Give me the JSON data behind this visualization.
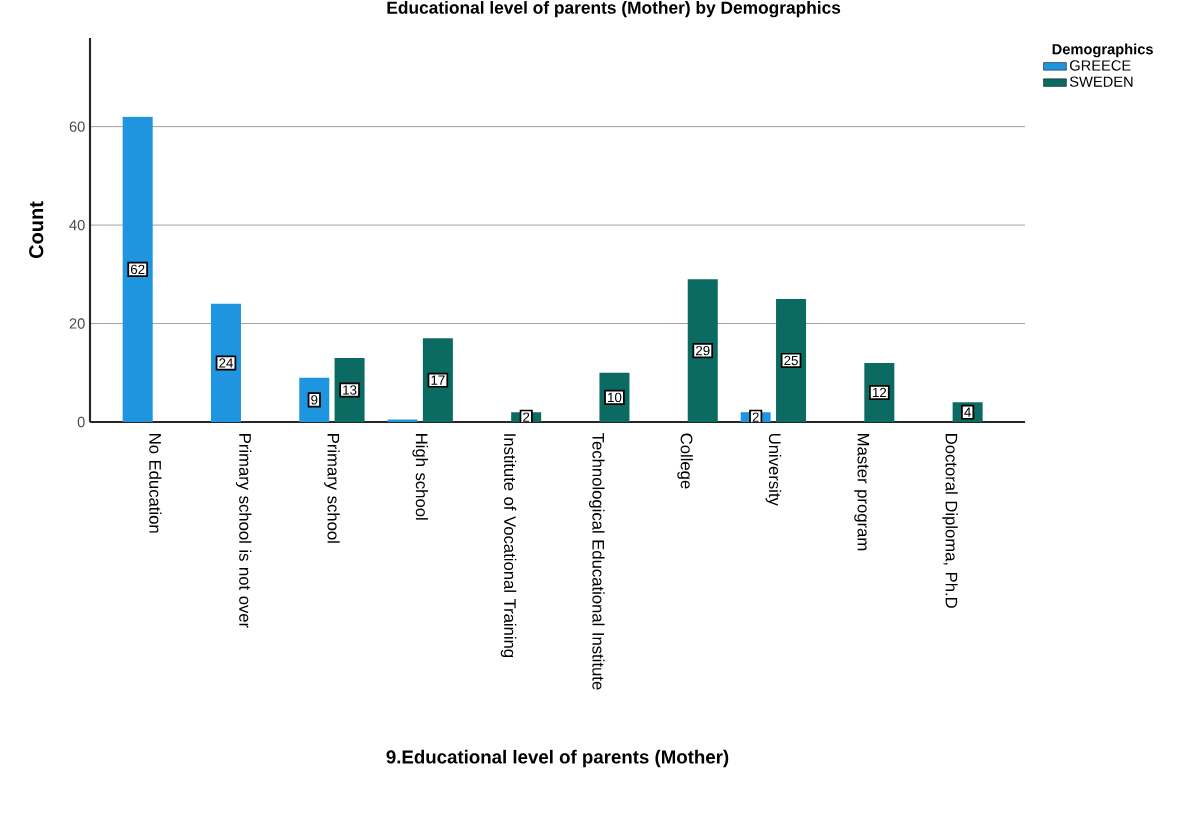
{
  "chart_data": {
    "type": "bar",
    "title": "Educational level of parents (Mother) by Demographics",
    "xlabel": "9.Educational level of parents (Mother)",
    "ylabel": "Count",
    "legend_title": "Demographics",
    "categories": [
      "No Education",
      "Primary school is not over",
      "Primary school",
      "High school",
      "Institute of Vocational Training",
      "Technological Educational Institute",
      "College",
      "University",
      "Master program",
      "Doctoral Diploma, Ph.D"
    ],
    "series": [
      {
        "name": "GREECE",
        "color": "#1f95e0",
        "values": [
          62,
          24,
          9,
          0.5,
          null,
          null,
          null,
          2,
          null,
          null
        ],
        "value_labels": [
          "62",
          "24",
          "9",
          null,
          null,
          null,
          null,
          "2",
          null,
          null
        ]
      },
      {
        "name": "SWEDEN",
        "color": "#0b6b62",
        "values": [
          null,
          null,
          13,
          17,
          2,
          10,
          29,
          25,
          12,
          4
        ],
        "value_labels": [
          null,
          null,
          "13",
          "17",
          "2",
          "10",
          "29",
          "25",
          "12",
          "4"
        ]
      }
    ],
    "ylim": [
      0,
      78
    ],
    "yticks": [
      0,
      20,
      40,
      60
    ],
    "grid": "y",
    "legend": "top right"
  }
}
